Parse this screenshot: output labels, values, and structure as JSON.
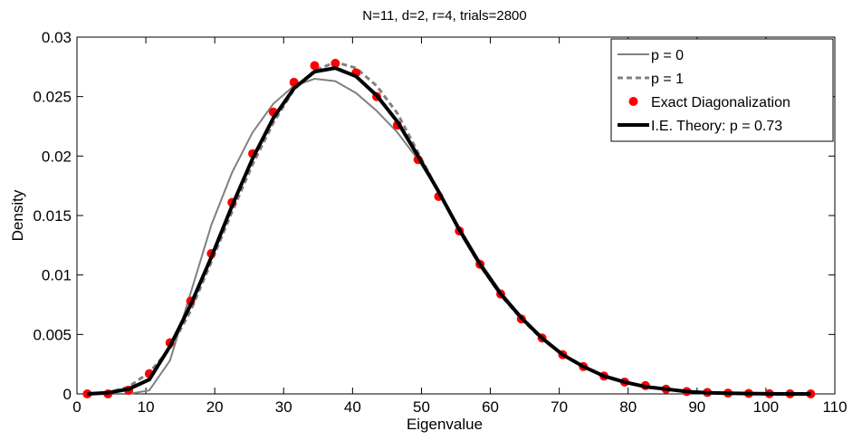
{
  "chart_data": {
    "type": "line",
    "title": "N=11, d=2, r=4, trials=2800",
    "xlabel": "Eigenvalue",
    "ylabel": "Density",
    "xlim": [
      0,
      110
    ],
    "ylim": [
      0,
      0.03
    ],
    "xticks": [
      0,
      10,
      20,
      30,
      40,
      50,
      60,
      70,
      80,
      90,
      100,
      110
    ],
    "yticks": [
      0,
      0.005,
      0.01,
      0.015,
      0.02,
      0.025,
      0.03
    ],
    "xtick_labels": [
      "0",
      "10",
      "20",
      "30",
      "40",
      "50",
      "60",
      "70",
      "80",
      "90",
      "100",
      "110"
    ],
    "ytick_labels": [
      "0",
      "0.005",
      "0.01",
      "0.015",
      "0.02",
      "0.025",
      "0.03"
    ],
    "grid": false,
    "legend_position": "top-right",
    "series": [
      {
        "name": "p = 0",
        "style": "solid-thin",
        "color": "#808080",
        "x": [
          1.5,
          4.5,
          7.5,
          10.5,
          13.5,
          16.5,
          19.5,
          22.5,
          25.5,
          28.5,
          31.5,
          34.5,
          37.5,
          40.5,
          43.5,
          46.5,
          49.5,
          52.5,
          55.5,
          58.5,
          61.5,
          64.5,
          67.5,
          70.5,
          73.5,
          76.5,
          79.5,
          82.5,
          85.5,
          88.5,
          91.5,
          94.5,
          97.5,
          100.5,
          103.5,
          106.5
        ],
        "y": [
          0,
          0,
          0,
          0.0003,
          0.0028,
          0.0085,
          0.0142,
          0.0186,
          0.022,
          0.0244,
          0.0259,
          0.0265,
          0.0263,
          0.0253,
          0.0238,
          0.022,
          0.0197,
          0.017,
          0.014,
          0.0111,
          0.0086,
          0.0065,
          0.0047,
          0.0034,
          0.0023,
          0.0015,
          0.001,
          0.0006,
          0.0004,
          0.0002,
          0.0001,
          6e-05,
          3e-05,
          1e-05,
          0,
          0
        ]
      },
      {
        "name": "p = 1",
        "style": "dashed",
        "color": "#808080",
        "x": [
          1.5,
          4.5,
          7.5,
          10.5,
          13.5,
          16.5,
          19.5,
          22.5,
          25.5,
          28.5,
          31.5,
          34.5,
          37.5,
          40.5,
          43.5,
          46.5,
          49.5,
          52.5,
          55.5,
          58.5,
          61.5,
          64.5,
          67.5,
          70.5,
          73.5,
          76.5,
          79.5,
          82.5,
          85.5,
          88.5,
          91.5,
          94.5,
          97.5,
          100.5,
          103.5,
          106.5
        ],
        "y": [
          0,
          0.0001,
          0.0006,
          0.0018,
          0.0038,
          0.007,
          0.0111,
          0.0153,
          0.0193,
          0.0228,
          0.0256,
          0.0272,
          0.0279,
          0.0274,
          0.0259,
          0.0236,
          0.0203,
          0.017,
          0.0137,
          0.0108,
          0.0083,
          0.0063,
          0.0046,
          0.0033,
          0.0023,
          0.0015,
          0.001,
          0.0006,
          0.0004,
          0.0002,
          0.0001,
          6e-05,
          3e-05,
          1e-05,
          0,
          0
        ]
      },
      {
        "name": "Exact Diagonalization",
        "style": "markers",
        "color": "#ff0000",
        "x": [
          1.5,
          4.5,
          7.5,
          10.5,
          13.5,
          16.5,
          19.5,
          22.5,
          25.5,
          28.5,
          31.5,
          34.5,
          37.5,
          40.5,
          43.5,
          46.5,
          49.5,
          52.5,
          55.5,
          58.5,
          61.5,
          64.5,
          67.5,
          70.5,
          73.5,
          76.5,
          79.5,
          82.5,
          85.5,
          88.5,
          91.5,
          94.5,
          97.5,
          100.5,
          103.5,
          106.5
        ],
        "y": [
          0,
          0,
          0.0003,
          0.0017,
          0.0043,
          0.0078,
          0.0118,
          0.0161,
          0.0202,
          0.0237,
          0.0262,
          0.0276,
          0.0278,
          0.027,
          0.025,
          0.0226,
          0.0197,
          0.0166,
          0.0137,
          0.0109,
          0.0084,
          0.0063,
          0.0047,
          0.0033,
          0.0023,
          0.0015,
          0.001,
          0.0007,
          0.0004,
          0.0002,
          0.00012,
          7e-05,
          4e-05,
          2e-05,
          1e-05,
          0
        ]
      },
      {
        "name": "I.E. Theory: p = 0.73",
        "style": "solid-thick",
        "color": "#000000",
        "x": [
          1.5,
          4.5,
          7.5,
          10.5,
          13.5,
          16.5,
          19.5,
          22.5,
          25.5,
          28.5,
          31.5,
          34.5,
          37.5,
          40.5,
          43.5,
          46.5,
          49.5,
          52.5,
          55.5,
          58.5,
          61.5,
          64.5,
          67.5,
          70.5,
          73.5,
          76.5,
          79.5,
          82.5,
          85.5,
          88.5,
          91.5,
          94.5,
          97.5,
          100.5,
          103.5,
          106.5
        ],
        "y": [
          0,
          0.0001,
          0.0004,
          0.0012,
          0.004,
          0.0075,
          0.0115,
          0.0158,
          0.0198,
          0.0232,
          0.0257,
          0.0271,
          0.0274,
          0.0267,
          0.0251,
          0.0229,
          0.02,
          0.017,
          0.0138,
          0.0109,
          0.0084,
          0.0064,
          0.0047,
          0.0033,
          0.0023,
          0.0015,
          0.001,
          0.0006,
          0.0004,
          0.0002,
          0.0001,
          6e-05,
          3e-05,
          1e-05,
          0,
          0
        ]
      }
    ]
  }
}
